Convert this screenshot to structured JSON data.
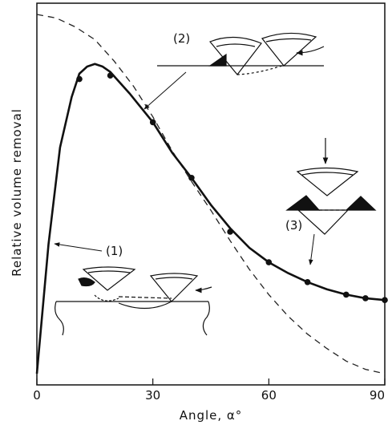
{
  "chart_data": {
    "type": "line",
    "xlabel": "Angle, α°",
    "ylabel": "Relative volume removal",
    "xlim": [
      0,
      90
    ],
    "ylim": [
      0,
      1
    ],
    "x_ticks": [
      "0",
      "30",
      "60",
      "90"
    ],
    "grid": false,
    "series": [
      {
        "style": "dashed",
        "points": [
          [
            0,
            1.0
          ],
          [
            5,
            0.99
          ],
          [
            10,
            0.965
          ],
          [
            15,
            0.93
          ],
          [
            20,
            0.87
          ],
          [
            25,
            0.8
          ],
          [
            30,
            0.715
          ],
          [
            35,
            0.62
          ],
          [
            40,
            0.535
          ],
          [
            45,
            0.455
          ],
          [
            50,
            0.37
          ],
          [
            55,
            0.29
          ],
          [
            60,
            0.22
          ],
          [
            65,
            0.16
          ],
          [
            70,
            0.11
          ],
          [
            75,
            0.07
          ],
          [
            80,
            0.035
          ],
          [
            85,
            0.012
          ],
          [
            90,
            0.0
          ]
        ]
      },
      {
        "style": "solid",
        "points": [
          [
            0,
            0.0
          ],
          [
            3,
            0.36
          ],
          [
            6,
            0.63
          ],
          [
            9,
            0.77
          ],
          [
            11,
            0.835
          ],
          [
            13,
            0.855
          ],
          [
            15,
            0.862
          ],
          [
            17,
            0.855
          ],
          [
            19,
            0.84
          ],
          [
            24,
            0.78
          ],
          [
            30,
            0.7
          ],
          [
            35,
            0.615
          ],
          [
            40,
            0.545
          ],
          [
            45,
            0.47
          ],
          [
            50,
            0.405
          ],
          [
            55,
            0.35
          ],
          [
            60,
            0.31
          ],
          [
            65,
            0.28
          ],
          [
            70,
            0.255
          ],
          [
            75,
            0.235
          ],
          [
            80,
            0.22
          ],
          [
            85,
            0.21
          ],
          [
            90,
            0.205
          ]
        ]
      }
    ],
    "data_points": [
      [
        11,
        0.82
      ],
      [
        19,
        0.83
      ],
      [
        30,
        0.7
      ],
      [
        40,
        0.545
      ],
      [
        50,
        0.395
      ],
      [
        60,
        0.31
      ],
      [
        70,
        0.255
      ],
      [
        80,
        0.22
      ],
      [
        85,
        0.21
      ],
      [
        90,
        0.205
      ]
    ],
    "annotations": [
      {
        "label": "(1)",
        "target": [
          4,
          0.34
        ]
      },
      {
        "label": "(2)",
        "target": [
          27,
          0.73
        ]
      },
      {
        "label": "(3)",
        "target": [
          71,
          0.27
        ]
      }
    ]
  }
}
